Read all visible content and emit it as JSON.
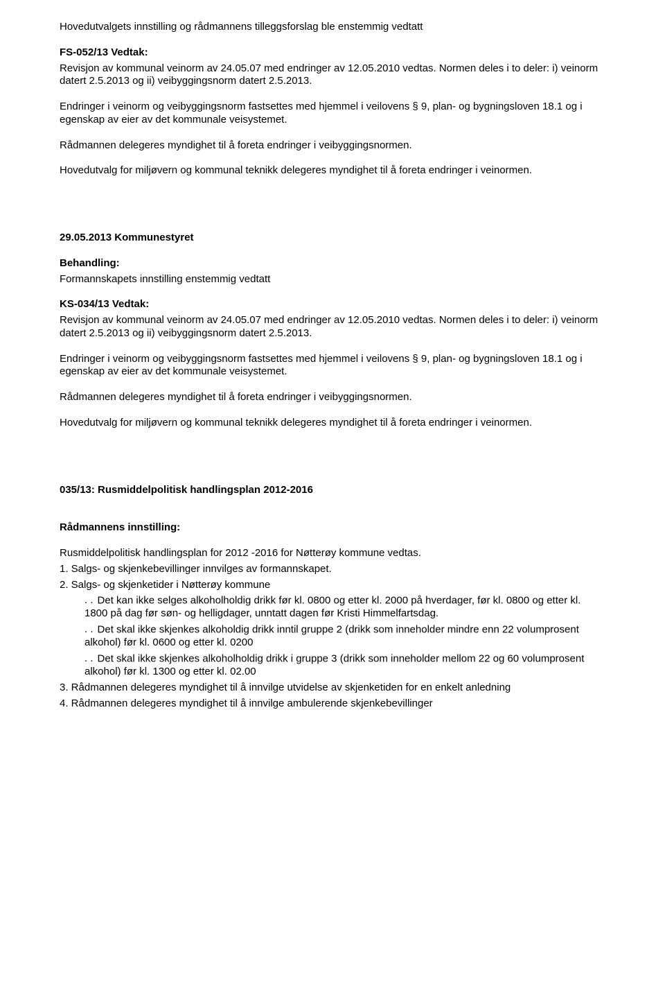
{
  "intro_line": "Hovedutvalgets innstilling og rådmannens tilleggsforslag ble enstemmig vedtatt",
  "fs_heading": "FS-052/13 Vedtak:",
  "revisjon_text_a": "Revisjon av kommunal veinorm av 24.05.07 med endringer av 12.05.2010 vedtas. Normen deles i to deler: i) veinorm datert 2.5.2013 og ii) veibyggingsnorm datert 2.5.2013.",
  "endringer_text": "Endringer i veinorm og veibyggingsnorm fastsettes med hjemmel i veilovens § 9, plan- og bygningsloven 18.1 og i egenskap av eier av det kommunale veisystemet.",
  "radmannen_text": "Rådmannen delegeres myndighet til å foreta endringer i veibyggingsnormen.",
  "hovedutvalg_text": "Hovedutvalg for miljøvern og kommunal teknikk delegeres myndighet til å foreta endringer i veinormen.",
  "kommunestyret_heading": "29.05.2013 Kommunestyret",
  "behandling_label": "Behandling:",
  "behandling_text": "Formannskapets innstilling enstemmig vedtatt",
  "ks_heading": "KS-034/13 Vedtak:",
  "section035_heading": "035/13: Rusmiddelpolitisk handlingsplan 2012-2016",
  "radmannens_innstilling_label": "Rådmannens innstilling:",
  "rus_line1": "Rusmiddelpolitisk handlingsplan for 2012 -2016 for Nøtterøy kommune vedtas.",
  "rus_line2": "1. Salgs- og skjenkebevillinger innvilges av formannskapet.",
  "rus_line3": "2. Salgs- og skjenketider i Nøtterøy kommune",
  "rus_sub_a": "Det kan ikke selges alkoholholdig drikk før kl. 0800 og etter kl. 2000 på hverdager, før kl. 0800 og etter kl. 1800 på dag før søn- og helligdager, unntatt dagen før Kristi Himmelfartsdag.",
  "rus_sub_b": "Det skal ikke skjenkes alkoholdig drikk inntil gruppe 2 (drikk som inneholder mindre enn 22 volumprosent alkohol) før kl. 0600 og etter kl. 0200",
  "rus_sub_c": "Det skal ikke skjenkes alkoholholdig drikk i gruppe 3 (drikk som inneholder mellom 22 og 60 volumprosent alkohol) før kl. 1300 og etter kl. 02.00",
  "rus_line4": "3. Rådmannen delegeres myndighet til å innvilge utvidelse av skjenketiden for en enkelt anledning",
  "rus_line5": "4. Rådmannen delegeres myndighet til å innvilge ambulerende skjenkebevillinger"
}
